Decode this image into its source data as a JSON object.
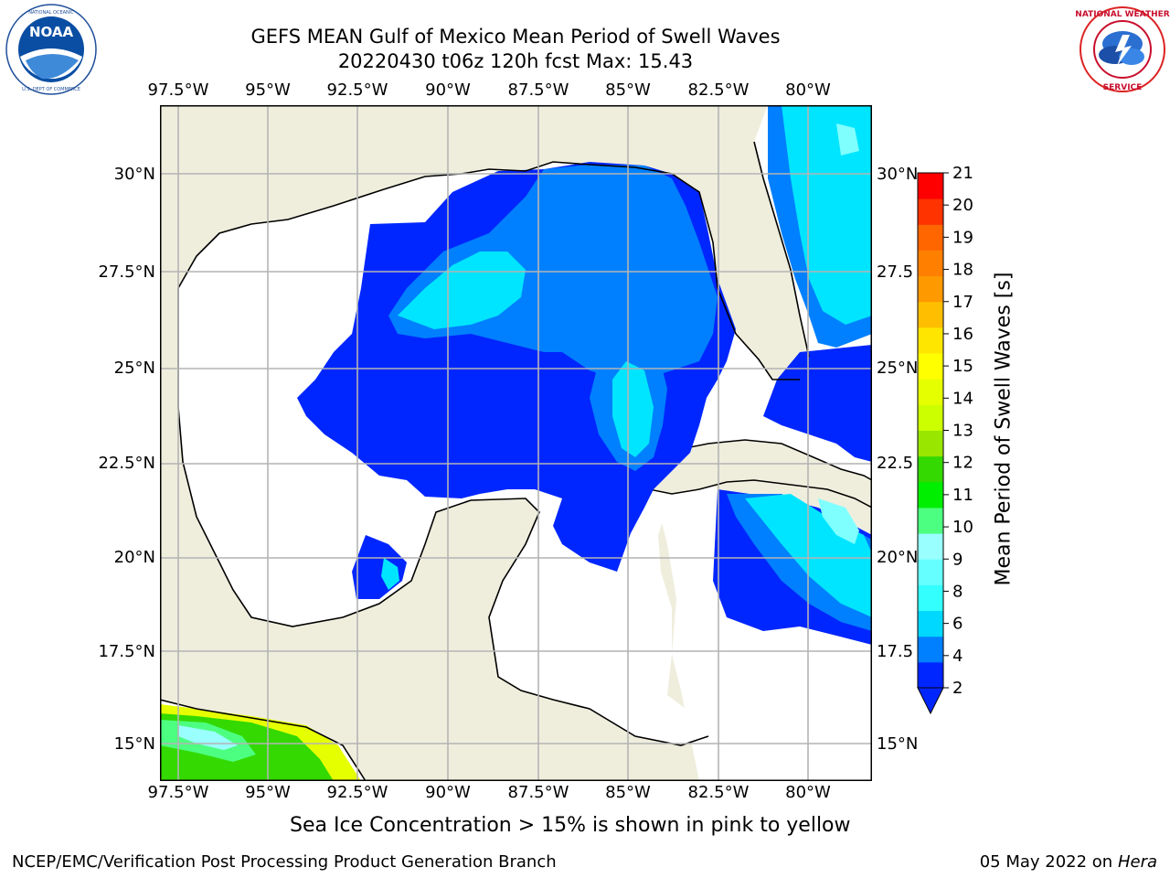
{
  "header": {
    "title_line1": "GEFS MEAN Gulf of Mexico Mean Period of Swell Waves",
    "title_line2": "20220430 t06z 120h fcst   Max: 15.43"
  },
  "logos": {
    "left": {
      "name": "NOAA",
      "ring_text": "NATIONAL OCEANIC AND ATMOSPHERIC ADMINISTRATION · U.S. DEPARTMENT OF COMMERCE"
    },
    "right": {
      "name": "NATIONAL WEATHER SERVICE"
    }
  },
  "map": {
    "lon_labels": [
      "97.5°W",
      "95°W",
      "92.5°W",
      "90°W",
      "87.5°W",
      "85°W",
      "82.5°W",
      "80°W"
    ],
    "lat_labels_left": [
      "30°N",
      "27.5°N",
      "25°N",
      "22.5°N",
      "20°N",
      "17.5°N",
      "15°N"
    ],
    "lat_labels_right": [
      "30°N",
      "27.5",
      "25°N",
      "22.5",
      "20°N",
      "17.5",
      "15°N"
    ]
  },
  "colorbar": {
    "label": "Mean Period of Swell Waves [s]",
    "ticks": [
      "2",
      "4",
      "6",
      "8",
      "9",
      "10",
      "11",
      "12",
      "13",
      "14",
      "15",
      "16",
      "17",
      "18",
      "19",
      "20",
      "21"
    ],
    "colors": [
      "#0026ff",
      "#0080ff",
      "#00d8ff",
      "#33ffff",
      "#66ffff",
      "#99ffff",
      "#4dff80",
      "#00ef00",
      "#33d900",
      "#99e600",
      "#ccff00",
      "#e6ff00",
      "#ffff00",
      "#ffe600",
      "#ffbf00",
      "#ff9900",
      "#ff8000",
      "#ff6600",
      "#ff3300",
      "#ff0000"
    ],
    "under_color": "#0026ff"
  },
  "caption": "Sea Ice Concentration > 15% is shown in pink to yellow",
  "footer": {
    "left": "NCEP/EMC/Verification Post Processing Product Generation Branch",
    "date": "05 May 2022 on",
    "machine": "Hera"
  }
}
